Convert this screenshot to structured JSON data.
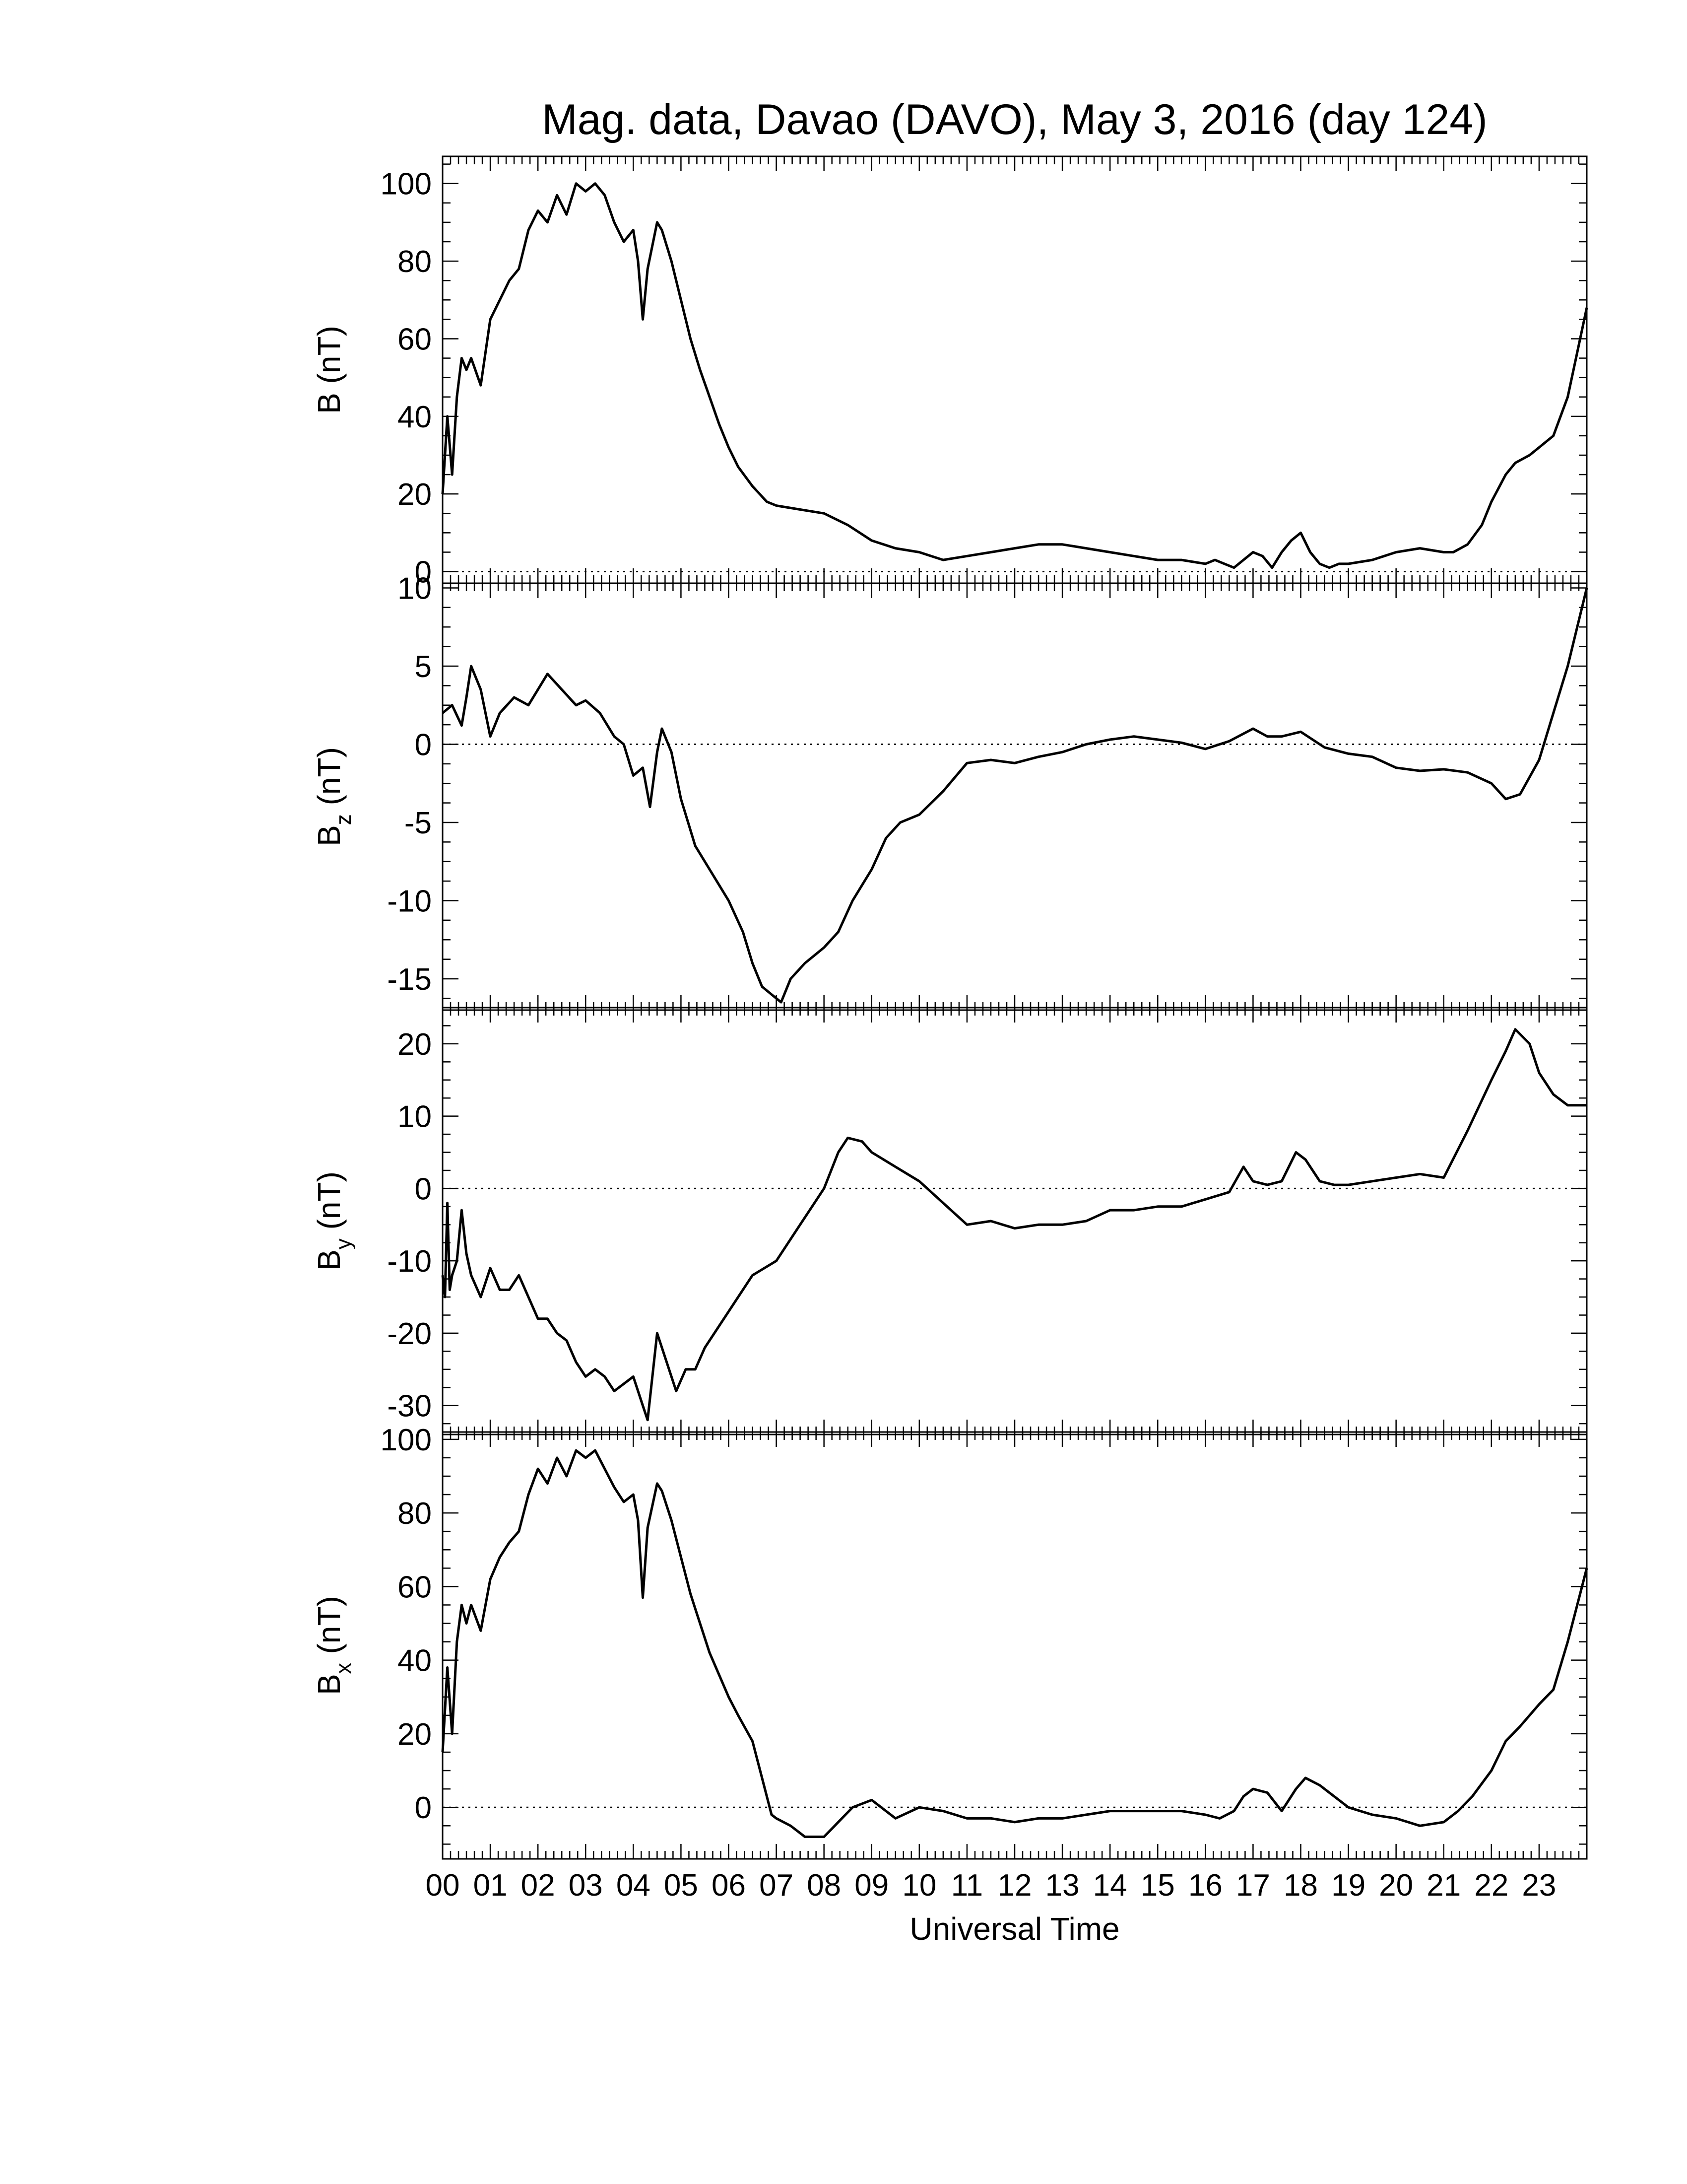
{
  "chart_data": {
    "type": "line",
    "title": "Mag. data, Davao (DAVO), May 3, 2016 (day 124)",
    "xlabel": "Universal Time",
    "x_unit": "hours UT",
    "xlim": [
      0,
      24
    ],
    "x_tick_labels": [
      "00",
      "01",
      "02",
      "03",
      "04",
      "05",
      "06",
      "07",
      "08",
      "09",
      "10",
      "11",
      "12",
      "13",
      "14",
      "15",
      "16",
      "17",
      "18",
      "19",
      "20",
      "21",
      "22",
      "23"
    ],
    "reference_line": "dotted at 0 in each panel",
    "panels": [
      {
        "ylabel": "B (nT)",
        "ylabel_main": "B",
        "ylabel_sub": "",
        "ylabel_unit": " (nT)",
        "ylim": [
          -3,
          107
        ],
        "yticks": [
          0,
          20,
          40,
          60,
          80,
          100
        ],
        "ytick_labels": [
          "0",
          "20",
          "40",
          "60",
          "80",
          "100"
        ],
        "x": [
          0,
          0.1,
          0.2,
          0.3,
          0.4,
          0.5,
          0.6,
          0.8,
          1.0,
          1.2,
          1.4,
          1.6,
          1.8,
          2.0,
          2.2,
          2.4,
          2.6,
          2.8,
          3.0,
          3.2,
          3.4,
          3.6,
          3.8,
          4.0,
          4.1,
          4.2,
          4.3,
          4.5,
          4.6,
          4.8,
          5.0,
          5.2,
          5.4,
          5.6,
          5.8,
          6.0,
          6.2,
          6.5,
          6.8,
          7.0,
          7.5,
          8.0,
          8.5,
          9.0,
          9.5,
          10.0,
          10.5,
          11.0,
          11.5,
          12.0,
          12.5,
          13.0,
          13.5,
          14.0,
          14.5,
          15.0,
          15.5,
          16.0,
          16.2,
          16.4,
          16.6,
          16.8,
          17.0,
          17.2,
          17.4,
          17.6,
          17.8,
          18.0,
          18.2,
          18.4,
          18.6,
          18.8,
          19.0,
          19.5,
          20.0,
          20.5,
          21.0,
          21.2,
          21.5,
          21.8,
          22.0,
          22.3,
          22.5,
          22.8,
          23.0,
          23.3,
          23.6,
          24.0
        ],
        "y": [
          20,
          40,
          25,
          45,
          55,
          52,
          55,
          48,
          65,
          70,
          75,
          78,
          88,
          93,
          90,
          97,
          92,
          100,
          98,
          100,
          97,
          90,
          85,
          88,
          80,
          65,
          78,
          90,
          88,
          80,
          70,
          60,
          52,
          45,
          38,
          32,
          27,
          22,
          18,
          17,
          16,
          15,
          12,
          8,
          6,
          5,
          3,
          4,
          5,
          6,
          7,
          7,
          6,
          5,
          4,
          3,
          3,
          2,
          3,
          2,
          1,
          3,
          5,
          4,
          1,
          5,
          8,
          10,
          5,
          2,
          1,
          2,
          2,
          3,
          5,
          6,
          5,
          5,
          7,
          12,
          18,
          25,
          28,
          30,
          32,
          35,
          45,
          68
        ]
      },
      {
        "ylabel": "Bz (nT)",
        "ylabel_main": "B",
        "ylabel_sub": "z",
        "ylabel_unit": " (nT)",
        "ylim": [
          -17,
          10.3
        ],
        "yticks": [
          -15,
          -10,
          -5,
          0,
          5,
          10
        ],
        "ytick_labels": [
          "-15",
          "-10",
          "-5",
          "0",
          "5",
          "10"
        ],
        "x": [
          0,
          0.2,
          0.4,
          0.5,
          0.6,
          0.8,
          0.9,
          1.0,
          1.2,
          1.5,
          1.8,
          2.0,
          2.2,
          2.5,
          2.8,
          3.0,
          3.3,
          3.6,
          3.8,
          4.0,
          4.2,
          4.35,
          4.5,
          4.6,
          4.8,
          5.0,
          5.3,
          5.6,
          6.0,
          6.3,
          6.5,
          6.7,
          6.9,
          7.1,
          7.3,
          7.6,
          8.0,
          8.3,
          8.6,
          9.0,
          9.3,
          9.6,
          10.0,
          10.5,
          11.0,
          11.5,
          12.0,
          12.5,
          13.0,
          13.5,
          14.0,
          14.5,
          15.0,
          15.5,
          16.0,
          16.5,
          17.0,
          17.3,
          17.6,
          18.0,
          18.5,
          19.0,
          19.5,
          20.0,
          20.5,
          21.0,
          21.5,
          22.0,
          22.3,
          22.6,
          23.0,
          23.3,
          23.6,
          24.0
        ],
        "y": [
          2,
          2.5,
          1.2,
          3,
          5,
          3.5,
          2,
          0.5,
          2,
          3,
          2.5,
          3.5,
          4.5,
          3.5,
          2.5,
          2.8,
          2,
          0.5,
          0,
          -2,
          -1.5,
          -4,
          -0.5,
          1,
          -0.5,
          -3.5,
          -6.5,
          -8,
          -10,
          -12,
          -14,
          -15.5,
          -16,
          -16.5,
          -15,
          -14,
          -13,
          -12,
          -10,
          -8,
          -6,
          -5,
          -4.5,
          -3,
          -1.2,
          -1,
          -1.2,
          -0.8,
          -0.5,
          0,
          0.3,
          0.5,
          0.3,
          0.1,
          -0.3,
          0.2,
          1,
          0.5,
          0.5,
          0.8,
          -0.2,
          -0.6,
          -0.8,
          -1.5,
          -1.7,
          -1.6,
          -1.8,
          -2.5,
          -3.5,
          -3.2,
          -1,
          2,
          5,
          10
        ]
      },
      {
        "ylabel": "By (nT)",
        "ylabel_main": "B",
        "ylabel_sub": "y",
        "ylabel_unit": " (nT)",
        "ylim": [
          -34,
          25
        ],
        "yticks": [
          -30,
          -20,
          -10,
          0,
          10,
          20
        ],
        "ytick_labels": [
          "-30",
          "-20",
          "-10",
          "0",
          "10",
          "20"
        ],
        "x": [
          0,
          0.05,
          0.1,
          0.15,
          0.2,
          0.3,
          0.4,
          0.5,
          0.6,
          0.8,
          1.0,
          1.2,
          1.4,
          1.6,
          1.8,
          2.0,
          2.2,
          2.4,
          2.6,
          2.8,
          3.0,
          3.2,
          3.4,
          3.6,
          3.8,
          4.0,
          4.2,
          4.3,
          4.5,
          4.7,
          4.9,
          5.1,
          5.3,
          5.5,
          6.0,
          6.5,
          7.0,
          7.5,
          8.0,
          8.3,
          8.5,
          8.8,
          9.0,
          9.5,
          10.0,
          10.5,
          11.0,
          11.5,
          12.0,
          12.5,
          13.0,
          13.5,
          14.0,
          14.5,
          15.0,
          15.5,
          16.0,
          16.5,
          16.8,
          17.0,
          17.3,
          17.6,
          17.9,
          18.1,
          18.4,
          18.7,
          19.0,
          19.5,
          20.0,
          20.5,
          21.0,
          21.5,
          22.0,
          22.3,
          22.5,
          22.8,
          23.0,
          23.3,
          23.6,
          24.0
        ],
        "y": [
          -12,
          -15,
          -2,
          -14,
          -12,
          -10,
          -3,
          -9,
          -12,
          -15,
          -11,
          -14,
          -14,
          -12,
          -15,
          -18,
          -18,
          -20,
          -21,
          -24,
          -26,
          -25,
          -26,
          -28,
          -27,
          -26,
          -30,
          -32,
          -20,
          -24,
          -28,
          -25,
          -25,
          -22,
          -17,
          -12,
          -10,
          -5,
          0,
          5,
          7,
          6.5,
          5,
          3,
          1,
          -2,
          -5,
          -4.5,
          -5.5,
          -5,
          -5,
          -4.5,
          -3,
          -3,
          -2.5,
          -2.5,
          -1.5,
          -0.5,
          3,
          1,
          0.5,
          1,
          5,
          4,
          1,
          0.5,
          0.5,
          1,
          1.5,
          2,
          1.5,
          8,
          15,
          19,
          22,
          20,
          16,
          13,
          11.5,
          11.5
        ]
      },
      {
        "ylabel": "Bx (nT)",
        "ylabel_main": "B",
        "ylabel_sub": "x",
        "ylabel_unit": " (nT)",
        "ylim": [
          -14,
          102
        ],
        "yticks": [
          0,
          20,
          40,
          60,
          80,
          100
        ],
        "ytick_labels": [
          "0",
          "20",
          "40",
          "60",
          "80",
          "100"
        ],
        "x": [
          0,
          0.1,
          0.2,
          0.3,
          0.4,
          0.5,
          0.6,
          0.8,
          1.0,
          1.2,
          1.4,
          1.6,
          1.8,
          2.0,
          2.2,
          2.4,
          2.6,
          2.8,
          3.0,
          3.2,
          3.4,
          3.6,
          3.8,
          4.0,
          4.1,
          4.2,
          4.3,
          4.5,
          4.6,
          4.8,
          5.0,
          5.2,
          5.4,
          5.6,
          5.8,
          6.0,
          6.2,
          6.5,
          6.7,
          6.9,
          7.0,
          7.3,
          7.6,
          8.0,
          8.3,
          8.6,
          9.0,
          9.5,
          10.0,
          10.5,
          11.0,
          11.5,
          12.0,
          12.5,
          13.0,
          13.5,
          14.0,
          14.5,
          15.0,
          15.5,
          16.0,
          16.3,
          16.6,
          16.8,
          17.0,
          17.3,
          17.6,
          17.9,
          18.1,
          18.4,
          18.7,
          19.0,
          19.5,
          20.0,
          20.5,
          21.0,
          21.3,
          21.6,
          22.0,
          22.3,
          22.6,
          23.0,
          23.3,
          23.6,
          24.0
        ],
        "y": [
          15,
          38,
          20,
          45,
          55,
          50,
          55,
          48,
          62,
          68,
          72,
          75,
          85,
          92,
          88,
          95,
          90,
          97,
          95,
          97,
          92,
          87,
          83,
          85,
          78,
          57,
          76,
          88,
          86,
          78,
          68,
          58,
          50,
          42,
          36,
          30,
          25,
          18,
          8,
          -2,
          -3,
          -5,
          -8,
          -8,
          -4,
          0,
          2,
          -3,
          0,
          -1,
          -3,
          -3,
          -4,
          -3,
          -3,
          -2,
          -1,
          -1,
          -1,
          -1,
          -2,
          -3,
          -1,
          3,
          5,
          4,
          -1,
          5,
          8,
          6,
          3,
          0,
          -2,
          -3,
          -5,
          -4,
          -1,
          3,
          10,
          18,
          22,
          28,
          32,
          45,
          65
        ]
      }
    ]
  }
}
